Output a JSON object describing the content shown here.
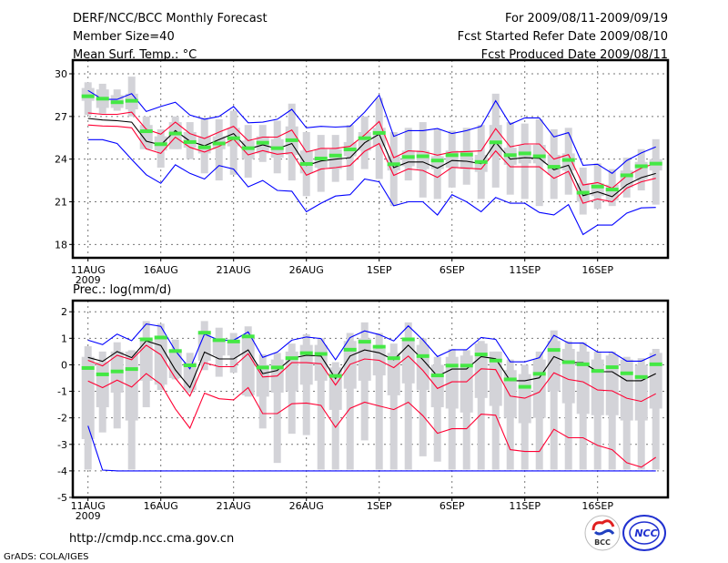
{
  "header": {
    "title": "DERF/NCC/BCC Monthly Forecast",
    "member_size": "Member Size=40",
    "variable": "Mean Surf. Temp.: °C",
    "period": "For 2009/08/11-2009/09/19",
    "start_date": "Fcst Started Refer Date 2009/08/10",
    "produced_date": "Fcst Produced Date 2009/08/11"
  },
  "footer": {
    "url": "http://cmdp.ncc.cma.gov.cn",
    "credit": "GrADS: COLA/IGES",
    "logo_bcc": "BCC",
    "logo_ncc": "NCC"
  },
  "colors": {
    "ensemble_range": "#0000ff",
    "spread": "#ff0033",
    "mean": "#000000",
    "observed": "#44e844",
    "box": "#d3d3d8"
  },
  "chart_data": [
    {
      "type": "line",
      "title": "Mean Surf. Temp.: °C",
      "ylabel": "°C",
      "ylim": [
        17.06,
        30.96
      ],
      "yticks": [
        "30",
        "27",
        "24",
        "21",
        "18"
      ],
      "ytick_values": [
        30,
        27,
        24,
        21,
        18
      ],
      "xticks": [
        "11AUG",
        "16AUG",
        "21AUG",
        "26AUG",
        "1SEP",
        "6SEP",
        "11SEP",
        "16SEP"
      ],
      "xtick_year": "2009",
      "days": 40,
      "grid": true,
      "series": [
        {
          "name": "max",
          "color": "#0000ff",
          "values": [
            28.83,
            28.2,
            28.2,
            28.6,
            27.35,
            27.7,
            28.0,
            27.1,
            26.8,
            27.0,
            27.7,
            26.55,
            26.6,
            26.8,
            27.5,
            26.2,
            26.3,
            26.25,
            26.3,
            27.3,
            28.5,
            25.6,
            26.0,
            26.0,
            26.15,
            25.8,
            26.0,
            26.3,
            28.1,
            26.45,
            26.9,
            26.9,
            25.56,
            25.86,
            23.57,
            23.64,
            23.0,
            23.9,
            24.43,
            24.86
          ]
        },
        {
          "name": "min",
          "color": "#0000ff",
          "values": [
            25.37,
            25.37,
            25.1,
            23.98,
            22.9,
            22.3,
            23.6,
            23.0,
            22.6,
            23.55,
            23.3,
            22.05,
            22.5,
            21.8,
            21.74,
            20.3,
            20.9,
            21.4,
            21.5,
            22.6,
            22.4,
            20.72,
            21.0,
            21.0,
            20.07,
            21.5,
            21.0,
            20.3,
            21.3,
            20.9,
            20.9,
            20.25,
            20.08,
            20.8,
            18.7,
            19.36,
            19.36,
            20.2,
            20.57,
            20.6
          ]
        },
        {
          "name": "upper",
          "color": "#ff0033",
          "values": [
            27.25,
            27.15,
            27.15,
            27.3,
            26.1,
            25.75,
            26.6,
            25.8,
            25.45,
            25.9,
            26.3,
            25.3,
            25.55,
            25.55,
            26.05,
            24.5,
            24.75,
            24.75,
            24.9,
            25.7,
            26.65,
            24.1,
            24.58,
            24.53,
            24.28,
            24.5,
            24.53,
            24.58,
            26.14,
            24.86,
            25.07,
            25.07,
            24.0,
            24.32,
            22.18,
            22.35,
            21.96,
            22.82,
            23.36,
            23.72
          ]
        },
        {
          "name": "lower",
          "color": "#ff0033",
          "values": [
            26.4,
            26.33,
            26.3,
            26.2,
            24.72,
            24.4,
            25.54,
            24.83,
            24.5,
            24.9,
            25.4,
            24.3,
            24.6,
            24.34,
            24.45,
            22.87,
            23.3,
            23.4,
            23.55,
            24.55,
            25.1,
            22.86,
            23.31,
            23.2,
            22.71,
            23.42,
            23.36,
            23.3,
            24.58,
            23.46,
            23.46,
            23.46,
            22.65,
            23.14,
            20.9,
            21.2,
            21.0,
            21.96,
            22.4,
            22.65
          ]
        },
        {
          "name": "mean",
          "color": "#000000",
          "values": [
            26.86,
            26.75,
            26.7,
            26.6,
            25.26,
            25.0,
            26.0,
            25.26,
            24.94,
            25.37,
            25.8,
            24.7,
            25.0,
            24.73,
            25.1,
            23.55,
            23.87,
            24.0,
            24.1,
            25.15,
            25.75,
            23.4,
            23.8,
            23.8,
            23.36,
            23.9,
            23.85,
            23.68,
            25.18,
            24.0,
            24.1,
            24.06,
            23.25,
            23.57,
            21.43,
            21.7,
            21.36,
            22.2,
            22.7,
            22.99
          ]
        }
      ],
      "observed": [
        28.42,
        28.25,
        28.0,
        28.1,
        25.96,
        25.05,
        25.8,
        25.2,
        24.83,
        25.1,
        25.47,
        24.77,
        25.15,
        24.77,
        25.33,
        23.66,
        24.04,
        24.25,
        24.68,
        25.47,
        25.84,
        23.64,
        24.15,
        24.2,
        23.9,
        24.28,
        24.32,
        23.8,
        25.18,
        24.28,
        24.4,
        24.2,
        23.46,
        23.94,
        21.64,
        22.07,
        21.86,
        22.86,
        23.5,
        23.68
      ],
      "whisker_high": [
        29.4,
        29.3,
        28.9,
        29.8,
        27.0,
        26.1,
        27.0,
        26.6,
        26.9,
        26.8,
        27.4,
        26.4,
        26.4,
        26.7,
        27.9,
        25.9,
        25.7,
        25.7,
        26.4,
        27.0,
        28.3,
        25.9,
        26.2,
        26.6,
        26.1,
        26.0,
        26.2,
        26.4,
        28.6,
        26.6,
        26.5,
        26.8,
        26.1,
        26.2,
        23.4,
        23.7,
        23.3,
        24.1,
        24.7,
        25.4
      ],
      "whisker_low": [
        27.1,
        27.2,
        27.4,
        27.0,
        24.7,
        23.4,
        24.7,
        24.0,
        23.0,
        22.5,
        22.9,
        22.7,
        23.8,
        23.0,
        22.5,
        21.4,
        21.7,
        22.4,
        22.5,
        23.3,
        22.6,
        20.7,
        22.5,
        21.3,
        21.2,
        22.0,
        22.2,
        21.2,
        22.0,
        21.5,
        21.2,
        20.7,
        21.2,
        21.5,
        20.1,
        20.5,
        20.7,
        21.3,
        21.8,
        20.8
      ],
      "box_high": [
        29.0,
        28.9,
        28.5,
        28.6,
        26.4,
        25.6,
        26.6,
        25.9,
        25.6,
        25.6,
        26.2,
        25.3,
        25.6,
        25.4,
        26.3,
        24.6,
        24.7,
        24.7,
        25.2,
        25.9,
        26.2,
        24.2,
        24.6,
        24.6,
        24.2,
        24.6,
        24.6,
        24.3,
        26.4,
        24.8,
        25.0,
        25.0,
        24.3,
        24.4,
        22.3,
        22.3,
        22.2,
        23.2,
        23.8,
        24.0
      ],
      "box_low": [
        28.1,
        27.6,
        27.6,
        27.5,
        24.7,
        24.6,
        24.7,
        24.8,
        24.4,
        24.7,
        24.9,
        24.0,
        24.4,
        24.1,
        24.3,
        23.0,
        23.4,
        23.3,
        24.2,
        24.6,
        24.9,
        23.2,
        23.5,
        23.3,
        23.3,
        23.4,
        23.3,
        23.1,
        24.2,
        23.6,
        23.7,
        23.7,
        22.9,
        23.2,
        21.0,
        21.4,
        21.1,
        22.0,
        22.6,
        23.2
      ]
    },
    {
      "type": "line",
      "title": "Prec.: log(mm/d)",
      "ylabel": "log(mm/d)",
      "ylim": [
        -5,
        2.42
      ],
      "yticks": [
        "2",
        "1",
        "0",
        "-1",
        "-2",
        "-3",
        "-4",
        "-5"
      ],
      "ytick_values": [
        2,
        1,
        0,
        -1,
        -2,
        -3,
        -4,
        -5
      ],
      "xticks": [
        "11AUG",
        "16AUG",
        "21AUG",
        "26AUG",
        "1SEP",
        "6SEP",
        "11SEP",
        "16SEP"
      ],
      "xtick_year": "2009",
      "days": 40,
      "grid": true,
      "series": [
        {
          "name": "max",
          "color": "#0000ff",
          "values": [
            0.93,
            0.76,
            1.16,
            0.91,
            1.54,
            1.45,
            0.53,
            -0.15,
            1.16,
            0.93,
            0.93,
            1.24,
            0.28,
            0.48,
            0.93,
            1.05,
            0.99,
            0.19,
            1.03,
            1.28,
            1.14,
            0.9,
            1.47,
            0.94,
            0.31,
            0.57,
            0.57,
            1.03,
            0.96,
            0.11,
            0.11,
            0.27,
            1.11,
            0.82,
            0.82,
            0.48,
            0.48,
            0.14,
            0.14,
            0.39
          ]
        },
        {
          "name": "min",
          "color": "#0000ff",
          "values": [
            -2.3,
            -3.97,
            -4,
            -4,
            -4,
            -4,
            -4,
            -4,
            -4,
            -4,
            -4,
            -4,
            -4,
            -4,
            -4,
            -4,
            -4,
            -4,
            -4,
            -4,
            -4,
            -4,
            -4,
            -4,
            -4,
            -4,
            -4,
            -4,
            -4,
            -4,
            -4,
            -4,
            -4,
            -4,
            -4,
            -4,
            -4,
            -4,
            -4,
            -4
          ]
        },
        {
          "name": "upper",
          "color": "#ff0033",
          "values": [
            0.17,
            -0.04,
            0.36,
            0.19,
            0.74,
            0.38,
            -0.5,
            -1.18,
            0.08,
            -0.07,
            -0.07,
            0.42,
            -0.46,
            -0.42,
            0.08,
            0.08,
            0.04,
            -0.76,
            0.02,
            0.22,
            0.17,
            -0.11,
            0.33,
            -0.21,
            -0.89,
            -0.64,
            -0.64,
            -0.15,
            -0.18,
            -1.18,
            -1.26,
            -1.03,
            -0.3,
            -0.55,
            -0.64,
            -0.95,
            -0.98,
            -1.26,
            -1.38,
            -1.09
          ]
        },
        {
          "name": "lower",
          "color": "#ff0033",
          "values": [
            -0.61,
            -0.86,
            -0.58,
            -0.84,
            -0.33,
            -0.73,
            -1.66,
            -2.39,
            -1.07,
            -1.28,
            -1.32,
            -0.86,
            -1.84,
            -1.84,
            -1.47,
            -1.44,
            -1.53,
            -2.36,
            -1.64,
            -1.41,
            -1.55,
            -1.69,
            -1.41,
            -1.92,
            -2.58,
            -2.41,
            -2.41,
            -1.86,
            -1.9,
            -3.2,
            -3.27,
            -3.27,
            -2.43,
            -2.75,
            -2.75,
            -3.04,
            -3.2,
            -3.69,
            -3.86,
            -3.49
          ]
        },
        {
          "name": "mean",
          "color": "#000000",
          "values": [
            0.28,
            0.13,
            0.5,
            0.27,
            0.9,
            0.73,
            -0.19,
            -0.86,
            0.48,
            0.22,
            0.22,
            0.56,
            -0.33,
            -0.21,
            0.25,
            0.36,
            0.33,
            -0.52,
            0.33,
            0.56,
            0.45,
            0.19,
            0.74,
            0.19,
            -0.43,
            -0.16,
            -0.16,
            0.31,
            0.23,
            -0.6,
            -0.6,
            -0.49,
            0.31,
            0.08,
            0.08,
            -0.26,
            -0.26,
            -0.6,
            -0.6,
            -0.33
          ]
        }
      ],
      "observed": [
        -0.12,
        -0.36,
        -0.25,
        -0.16,
        0.96,
        1.03,
        0.52,
        -0.02,
        1.21,
        0.93,
        0.88,
        1.07,
        -0.1,
        -0.1,
        0.25,
        0.44,
        0.41,
        -0.42,
        0.57,
        0.87,
        0.68,
        0.25,
        0.96,
        0.33,
        -0.4,
        -0.03,
        -0.03,
        0.39,
        0.16,
        -0.55,
        -0.83,
        -0.34,
        0.56,
        0.1,
        0.02,
        -0.23,
        -0.09,
        -0.32,
        -0.46,
        0.02
      ],
      "whisker_high": [
        0.7,
        0.5,
        0.85,
        0.55,
        1.65,
        1.55,
        0.95,
        0.45,
        1.65,
        1.4,
        1.2,
        1.45,
        0.4,
        0.45,
        0.8,
        1.15,
        1.0,
        0.1,
        1.2,
        1.6,
        1.2,
        0.8,
        1.6,
        1.0,
        0.3,
        0.6,
        0.55,
        0.9,
        0.5,
        0.2,
        0.0,
        0.5,
        1.3,
        0.9,
        0.85,
        0.5,
        0.5,
        0.3,
        0.25,
        0.6
      ],
      "whisker_low": [
        -3.95,
        -2.55,
        -2.4,
        -3.95,
        -1.6,
        -0.95,
        -0.55,
        -1.05,
        -0.2,
        -0.45,
        -0.3,
        -1.2,
        -2.4,
        -3.7,
        -2.6,
        -2.65,
        -3.95,
        -3.95,
        -3.95,
        -2.85,
        -3.95,
        -3.95,
        -3.95,
        -3.45,
        -3.65,
        -3.95,
        -3.95,
        -3.95,
        -3.95,
        -3.95,
        -3.95,
        -3.95,
        -3.95,
        -3.95,
        -3.95,
        -3.95,
        -3.95,
        -3.95,
        -3.95,
        -3.95
      ],
      "box_high": [
        0.3,
        0.1,
        0.5,
        0.5,
        0.9,
        1.0,
        0.55,
        0.1,
        1.15,
        0.95,
        0.9,
        1.0,
        0.0,
        0.2,
        0.5,
        0.75,
        0.75,
        -0.1,
        0.9,
        1.0,
        0.6,
        0.45,
        0.95,
        0.75,
        0.0,
        0.3,
        0.35,
        0.8,
        0.5,
        -0.2,
        -0.35,
        0.2,
        0.9,
        0.6,
        0.5,
        0.2,
        0.35,
        0.2,
        0.0,
        0.45
      ],
      "box_low": [
        -2.8,
        -1.6,
        -1.05,
        -2.1,
        -0.6,
        -0.75,
        -0.5,
        -0.95,
        0.15,
        0.35,
        0.35,
        -1.15,
        -1.2,
        -1.05,
        -1.0,
        -0.75,
        -0.6,
        -1.7,
        -0.9,
        -0.6,
        -0.4,
        -1.15,
        -0.7,
        -0.95,
        -1.6,
        -1.65,
        -1.8,
        -1.25,
        -1.55,
        -2.0,
        -2.2,
        -2.0,
        -1.0,
        -1.45,
        -1.85,
        -1.9,
        -1.9,
        -2.1,
        -2.1,
        -1.65
      ]
    }
  ]
}
